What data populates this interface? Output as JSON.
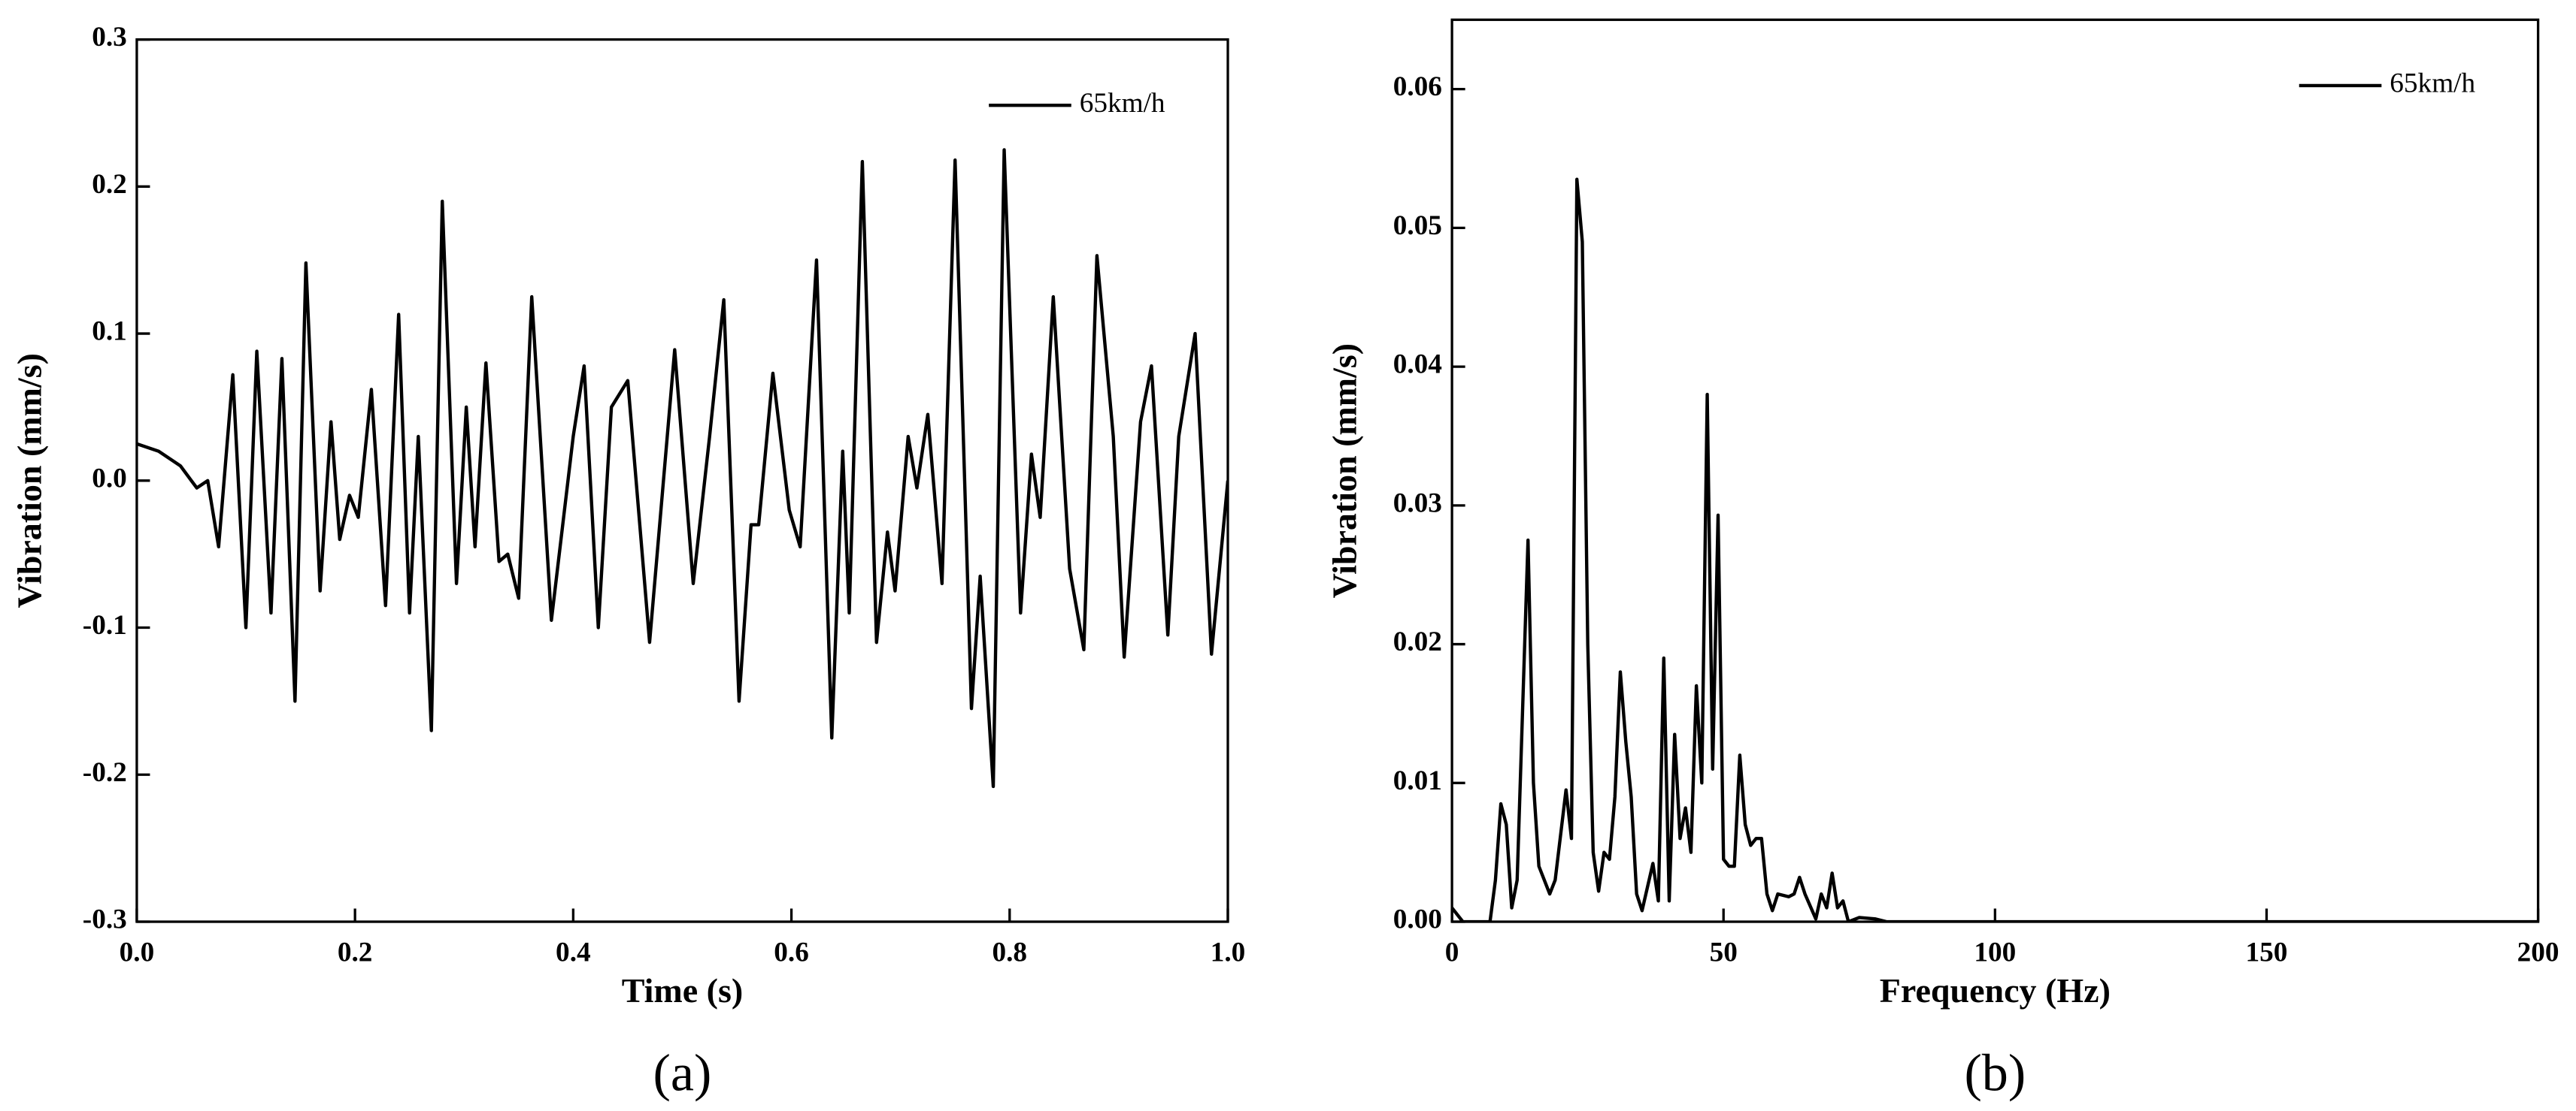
{
  "chart_data": [
    {
      "type": "line",
      "panel_label": "(a)",
      "xlabel": "Time (s)",
      "ylabel": "Vibration (mm/s)",
      "xlim": [
        0,
        1
      ],
      "ylim": [
        -0.3,
        0.3
      ],
      "xticks": [
        {
          "value": 0,
          "label": "0.0"
        },
        0.2,
        0.4,
        0.6,
        0.8,
        {
          "value": 1,
          "label": "1.0"
        }
      ],
      "yticks": [
        -0.3,
        -0.2,
        -0.1,
        {
          "value": 0,
          "label": "0.0"
        },
        0.1,
        0.2,
        0.3
      ],
      "legend": "upper right",
      "x": [
        0,
        0.02,
        0.04,
        0.055,
        0.065,
        0.075,
        0.088,
        0.1,
        0.11,
        0.123,
        0.133,
        0.145,
        0.155,
        0.168,
        0.178,
        0.186,
        0.195,
        0.203,
        0.215,
        0.228,
        0.24,
        0.25,
        0.258,
        0.27,
        0.28,
        0.293,
        0.302,
        0.31,
        0.32,
        0.332,
        0.34,
        0.35,
        0.362,
        0.38,
        0.4,
        0.41,
        0.423,
        0.435,
        0.45,
        0.47,
        0.493,
        0.51,
        0.525,
        0.538,
        0.552,
        0.563,
        0.57,
        0.583,
        0.598,
        0.608,
        0.623,
        0.637,
        0.647,
        0.653,
        0.665,
        0.678,
        0.688,
        0.695,
        0.707,
        0.715,
        0.725,
        0.738,
        0.75,
        0.765,
        0.773,
        0.785,
        0.795,
        0.81,
        0.82,
        0.828,
        0.84,
        0.855,
        0.868,
        0.88,
        0.895,
        0.905,
        0.92,
        0.93,
        0.945,
        0.955,
        0.97,
        0.985,
        1.0
      ],
      "series": [
        {
          "name": "65km/h",
          "color": "#000000",
          "values": [
            0.025,
            0.02,
            0.01,
            -0.005,
            0.0,
            -0.045,
            0.072,
            -0.1,
            0.088,
            -0.09,
            0.083,
            -0.15,
            0.148,
            -0.075,
            0.04,
            -0.04,
            -0.01,
            -0.025,
            0.062,
            -0.085,
            0.113,
            -0.09,
            0.03,
            -0.17,
            0.19,
            -0.07,
            0.05,
            -0.045,
            0.08,
            -0.055,
            -0.05,
            -0.08,
            0.125,
            -0.095,
            0.03,
            0.078,
            -0.1,
            0.05,
            0.068,
            -0.11,
            0.089,
            -0.07,
            0.03,
            0.123,
            -0.15,
            -0.03,
            -0.03,
            0.073,
            -0.02,
            -0.045,
            0.15,
            -0.175,
            0.02,
            -0.09,
            0.217,
            -0.11,
            -0.035,
            -0.075,
            0.03,
            -0.005,
            0.045,
            -0.07,
            0.218,
            -0.155,
            -0.065,
            -0.208,
            0.225,
            -0.09,
            0.018,
            -0.025,
            0.125,
            -0.06,
            -0.115,
            0.153,
            0.03,
            -0.12,
            0.04,
            0.078,
            -0.105,
            0.03,
            0.1,
            -0.118,
            0.0
          ]
        }
      ]
    },
    {
      "type": "line",
      "panel_label": "(b)",
      "xlabel": "Frequency (Hz)",
      "ylabel": "Vibration (mm/s)",
      "xlim": [
        0,
        200
      ],
      "ylim": [
        0,
        0.065
      ],
      "xticks": [
        0,
        50,
        100,
        150,
        200
      ],
      "yticks": [
        {
          "value": 0,
          "label": "0.00"
        },
        {
          "value": 0.01,
          "label": "0.01"
        },
        {
          "value": 0.02,
          "label": "0.02"
        },
        {
          "value": 0.03,
          "label": "0.03"
        },
        {
          "value": 0.04,
          "label": "0.04"
        },
        {
          "value": 0.05,
          "label": "0.05"
        },
        {
          "value": 0.06,
          "label": "0.06"
        }
      ],
      "legend": "upper right",
      "x": [
        0,
        2,
        7,
        8,
        9,
        10,
        11,
        12,
        14,
        15,
        16,
        18,
        19,
        21,
        22,
        23,
        24,
        25,
        26,
        27,
        28,
        29,
        30,
        31,
        32,
        33,
        34,
        35,
        37,
        38,
        39,
        40,
        41,
        42,
        43,
        44,
        45,
        46,
        47,
        48,
        49,
        50,
        51,
        52,
        53,
        54,
        55,
        56,
        57,
        58,
        59,
        60,
        62,
        63,
        64,
        65,
        67,
        68,
        69,
        70,
        71,
        72,
        73,
        75,
        78,
        80,
        200
      ],
      "series": [
        {
          "name": "65km/h",
          "color": "#000000",
          "values": [
            0.001,
            0.0,
            0.0,
            0.003,
            0.0085,
            0.007,
            0.001,
            0.003,
            0.0275,
            0.01,
            0.004,
            0.002,
            0.003,
            0.0095,
            0.006,
            0.0535,
            0.049,
            0.02,
            0.005,
            0.0022,
            0.005,
            0.0045,
            0.009,
            0.018,
            0.013,
            0.009,
            0.002,
            0.0008,
            0.0042,
            0.0015,
            0.019,
            0.0015,
            0.0135,
            0.006,
            0.0082,
            0.005,
            0.017,
            0.01,
            0.038,
            0.011,
            0.0293,
            0.0045,
            0.004,
            0.004,
            0.012,
            0.007,
            0.0055,
            0.006,
            0.006,
            0.002,
            0.0008,
            0.002,
            0.0018,
            0.002,
            0.0032,
            0.002,
            0.0002,
            0.002,
            0.001,
            0.0035,
            0.001,
            0.0015,
            0.0,
            0.0003,
            0.0002,
            0.0,
            0.0
          ]
        }
      ]
    }
  ]
}
